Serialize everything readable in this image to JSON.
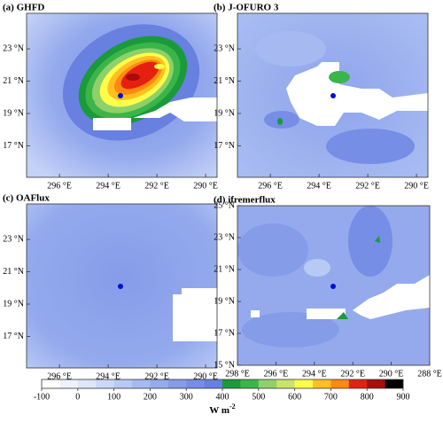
{
  "panels": [
    {
      "label": "(a) GHFD",
      "xlim": [
        297.35,
        289.53
      ],
      "ylim": [
        15.05,
        25.2
      ],
      "xticks": [
        {
          "value": 296,
          "label": "296 °E"
        },
        {
          "value": 294,
          "label": "294 °E"
        },
        {
          "value": 292,
          "label": "292 °E"
        },
        {
          "value": 290,
          "label": "290 °E"
        }
      ],
      "yticks": [
        {
          "value": 23,
          "label": "23 °N"
        },
        {
          "value": 21,
          "label": "21 °N"
        },
        {
          "value": 19,
          "label": "19 °N"
        },
        {
          "value": 17,
          "label": "17 °N"
        }
      ]
    },
    {
      "label": "(b) J-OFURO 3",
      "xlim": [
        297.35,
        289.53
      ],
      "ylim": [
        15.05,
        25.2
      ],
      "xticks": [
        {
          "value": 296,
          "label": "296 °E"
        },
        {
          "value": 294,
          "label": "294 °E"
        },
        {
          "value": 292,
          "label": "292 °E"
        },
        {
          "value": 290,
          "label": "290 °E"
        }
      ],
      "yticks": [
        {
          "value": 23,
          "label": "23 °N"
        },
        {
          "value": 21,
          "label": "21 °N"
        },
        {
          "value": 19,
          "label": "19 °N"
        },
        {
          "value": 17,
          "label": "17 °N"
        }
      ]
    },
    {
      "label": "(c) OAFlux",
      "xlim": [
        297.35,
        289.53
      ],
      "ylim": [
        15.05,
        25.2
      ],
      "xticks": [
        {
          "value": 296,
          "label": "296 °E"
        },
        {
          "value": 294,
          "label": "294 °E"
        },
        {
          "value": 292,
          "label": "292 °E"
        },
        {
          "value": 290,
          "label": "290 °E"
        }
      ],
      "yticks": [
        {
          "value": 23,
          "label": "23 °N"
        },
        {
          "value": 21,
          "label": "21 °N"
        },
        {
          "value": 19,
          "label": "19 °N"
        },
        {
          "value": 17,
          "label": "17 °N"
        }
      ]
    },
    {
      "label": "(d) ifremerflux",
      "xlim": [
        298,
        288
      ],
      "ylim": [
        15,
        25
      ],
      "xticks": [
        {
          "value": 298,
          "label": "298 °E"
        },
        {
          "value": 296,
          "label": "296 °E"
        },
        {
          "value": 294,
          "label": "294 °E"
        },
        {
          "value": 292,
          "label": "292 °E"
        },
        {
          "value": 290,
          "label": "290 °E"
        },
        {
          "value": 288,
          "label": "288 °E"
        }
      ],
      "yticks": [
        {
          "value": 25,
          "label": "25 °N"
        },
        {
          "value": 23,
          "label": "23 °N"
        },
        {
          "value": 21,
          "label": "21 °N"
        },
        {
          "value": 19,
          "label": "19 °N"
        },
        {
          "value": 17,
          "label": "17 °N"
        },
        {
          "value": 15,
          "label": "15 °N"
        }
      ]
    }
  ],
  "colorbar": {
    "ticks": [
      -100,
      0,
      100,
      200,
      300,
      400,
      500,
      600,
      700,
      800,
      900
    ],
    "colors": [
      "#ffffff",
      "#eef2fd",
      "#dde6fb",
      "#cbd8f8",
      "#b8c9f5",
      "#a6b9f1",
      "#95aaed",
      "#859ce9",
      "#768ee5",
      "#6880e0",
      "#1a9a3a",
      "#3bb54a",
      "#8fd06a",
      "#c9e46a",
      "#ffff4a",
      "#ffc020",
      "#ff8a10",
      "#e52010",
      "#a80c0c",
      "#000000"
    ],
    "unit": "W m",
    "unit_exponent": "-2"
  }
}
